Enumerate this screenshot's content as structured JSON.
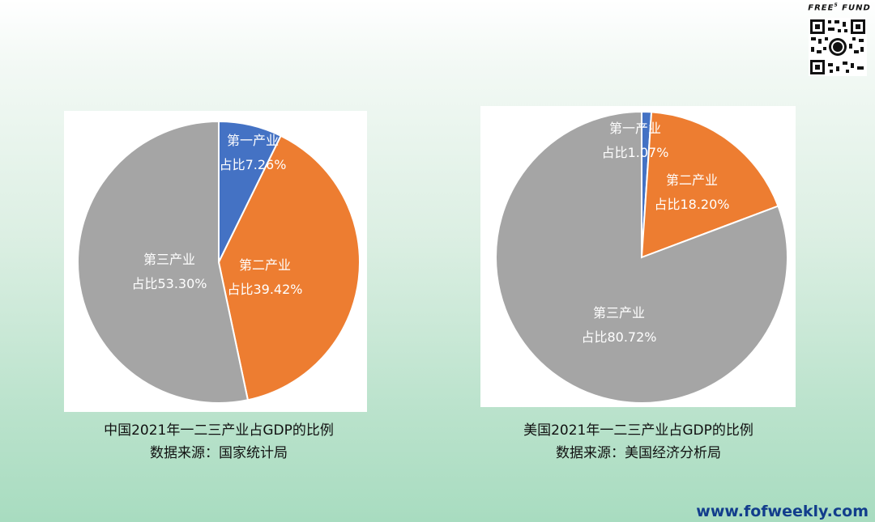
{
  "brand": {
    "name": "FREE",
    "superscript": "5",
    "name2": "FUND"
  },
  "website": "www.fofweekly.com",
  "colors": {
    "primary": "#4472c4",
    "secondary": "#ed7d31",
    "tertiary": "#a5a5a5"
  },
  "chart_data": [
    {
      "type": "pie",
      "categories": [
        "第一产业",
        "第二产业",
        "第三产业"
      ],
      "values": [
        7.26,
        39.42,
        53.3
      ],
      "value_labels": [
        "占比7.26%",
        "占比39.42%",
        "占比53.30%"
      ],
      "colors": [
        "#4472c4",
        "#ed7d31",
        "#a5a5a5"
      ],
      "title": "中国2021年一二三产业占GDP的比例",
      "subtitle": "数据来源：国家统计局",
      "start_angle_deg": 0,
      "direction": "clockwise"
    },
    {
      "type": "pie",
      "categories": [
        "第一产业",
        "第二产业",
        "第三产业"
      ],
      "values": [
        1.07,
        18.2,
        80.72
      ],
      "value_labels": [
        "占比1.07%",
        "占比18.20%",
        "占比80.72%"
      ],
      "colors": [
        "#4472c4",
        "#ed7d31",
        "#a5a5a5"
      ],
      "title": "美国2021年一二三产业占GDP的比例",
      "subtitle": "数据来源：美国经济分析局",
      "start_angle_deg": 0,
      "direction": "clockwise"
    }
  ]
}
